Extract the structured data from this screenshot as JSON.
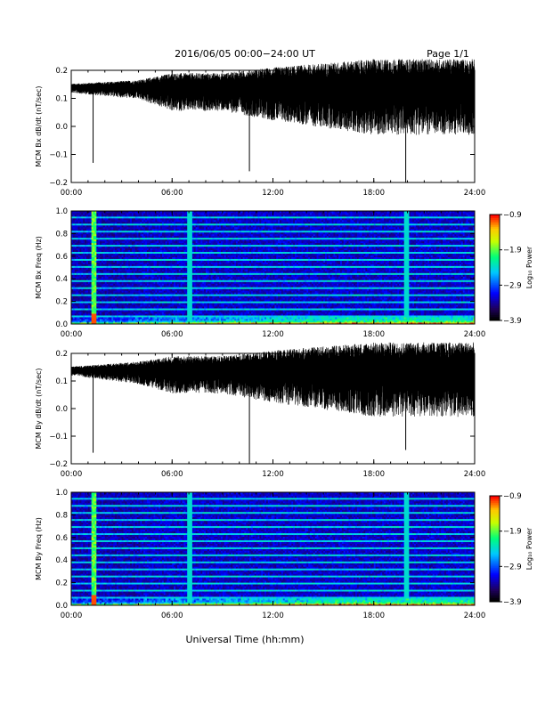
{
  "header": {
    "title": "2016/06/05   00:00−24:00  UT",
    "page": "Page 1/1"
  },
  "chart_data": [
    {
      "type": "line",
      "ylabel": "MCM Bx dB/dt (nT/sec)",
      "ylim": [
        -0.2,
        0.2
      ],
      "yticks": [
        "0.2",
        "0.1",
        "0.0",
        "−0.1",
        "−0.2"
      ],
      "xticks": [
        "00:00",
        "06:00",
        "12:00",
        "18:00",
        "24:00"
      ],
      "xlim_hours": [
        0,
        24
      ],
      "baseline": 0.14,
      "noise_envelope": [
        {
          "t": 0,
          "amp": 0.012
        },
        {
          "t": 4,
          "amp": 0.025
        },
        {
          "t": 6,
          "amp": 0.05
        },
        {
          "t": 9,
          "amp": 0.05
        },
        {
          "t": 12,
          "amp": 0.07
        },
        {
          "t": 18,
          "amp": 0.1
        },
        {
          "t": 24,
          "amp": 0.1
        }
      ],
      "spikes": [
        {
          "t": 1.3,
          "y": -0.13
        },
        {
          "t": 10.6,
          "y": -0.16
        },
        {
          "t": 19.9,
          "y": -0.2
        }
      ]
    },
    {
      "type": "heatmap",
      "ylabel": "MCM Bx Freq (Hz)",
      "ylim": [
        0,
        1.0
      ],
      "yticks": [
        "1.0",
        "0.8",
        "0.6",
        "0.4",
        "0.2",
        "0.0"
      ],
      "xticks": [
        "00:00",
        "06:00",
        "12:00",
        "18:00",
        "24:00"
      ],
      "xlim_hours": [
        0,
        24
      ],
      "colorbar": {
        "label": "Log₁₀ Power",
        "ticks": [
          "−0.9",
          "−1.9",
          "−2.9",
          "−3.9"
        ],
        "range": [
          -3.9,
          -0.9
        ]
      },
      "bright_times": [
        1.3,
        7.0,
        19.9
      ],
      "harmonic_step_hz": 0.0625
    },
    {
      "type": "line",
      "ylabel": "MCM By dB/dt (nT/sec)",
      "ylim": [
        -0.2,
        0.2
      ],
      "yticks": [
        "0.2",
        "0.1",
        "0.0",
        "−0.1",
        "−0.2"
      ],
      "xticks": [
        "00:00",
        "06:00",
        "12:00",
        "18:00",
        "24:00"
      ],
      "xlim_hours": [
        0,
        24
      ],
      "baseline": 0.14,
      "noise_envelope": [
        {
          "t": 0,
          "amp": 0.012
        },
        {
          "t": 4,
          "amp": 0.03
        },
        {
          "t": 6,
          "amp": 0.05
        },
        {
          "t": 9,
          "amp": 0.05
        },
        {
          "t": 12,
          "amp": 0.07
        },
        {
          "t": 18,
          "amp": 0.1
        },
        {
          "t": 24,
          "amp": 0.1
        }
      ],
      "spikes": [
        {
          "t": 1.3,
          "y": -0.16
        },
        {
          "t": 10.6,
          "y": -0.2
        },
        {
          "t": 19.9,
          "y": -0.15
        }
      ]
    },
    {
      "type": "heatmap",
      "ylabel": "MCM By Freq (Hz)",
      "ylim": [
        0,
        1.0
      ],
      "yticks": [
        "1.0",
        "0.8",
        "0.6",
        "0.4",
        "0.2",
        "0.0"
      ],
      "xticks": [
        "00:00",
        "06:00",
        "12:00",
        "18:00",
        "24:00"
      ],
      "xlim_hours": [
        0,
        24
      ],
      "colorbar": {
        "label": "Log₁₀ Power",
        "ticks": [
          "−0.9",
          "−1.9",
          "−2.9",
          "−3.9"
        ],
        "range": [
          -3.9,
          -0.9
        ]
      },
      "bright_times": [
        1.3,
        7.0,
        19.9
      ],
      "harmonic_step_hz": 0.0625
    }
  ],
  "footer": {
    "xlabel": "Universal Time (hh:mm)"
  }
}
